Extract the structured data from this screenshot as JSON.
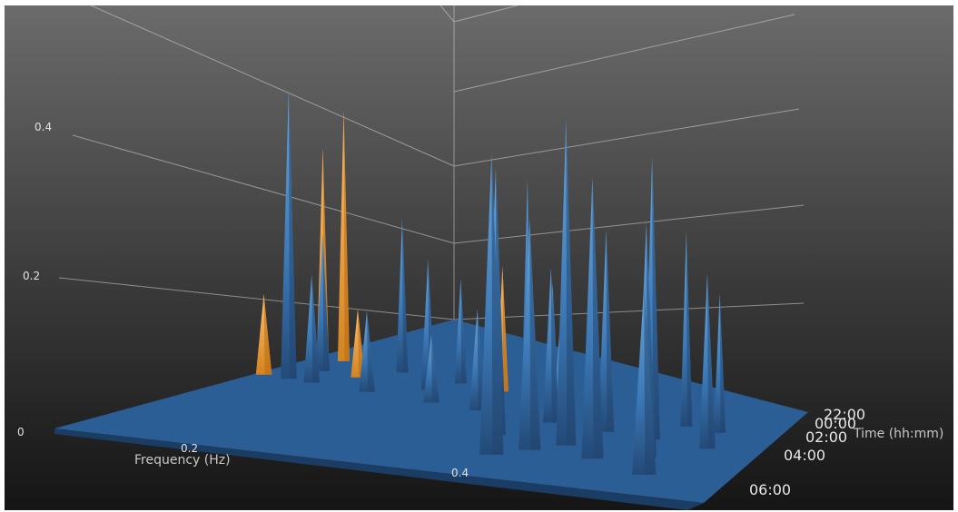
{
  "chart_data": {
    "type": "surface3d",
    "title": "",
    "xlabel": "Frequency (Hz)",
    "ylabel": "Time (hh:mm)",
    "zlabel": "",
    "x_ticks": [
      "0.2",
      "0.4"
    ],
    "z_ticks": [
      "0",
      "0.2",
      "0.4"
    ],
    "y_ticks": [
      "22:00",
      "00:00",
      "02:00",
      "04:00",
      "06:00"
    ],
    "x_range": [
      0.0,
      0.5
    ],
    "z_range": [
      0.0,
      0.55
    ],
    "y_range_hours": [
      21.5,
      6.5
    ],
    "grid": true,
    "colors": {
      "background_top": "#6a6a6a",
      "background_bottom": "#161616",
      "surface": "#3b78b5",
      "surface_dark": "#264f80",
      "surface_light": "#6fa8dc",
      "highlight": "#f0a33a",
      "grid": "#d4d4d4",
      "text": "#e0e0e0"
    },
    "peaks": [
      {
        "freq": 0.005,
        "time": "22:00",
        "z": 0.3,
        "color": "orange"
      },
      {
        "freq": 0.008,
        "time": "00:00",
        "z": 0.12,
        "color": "orange"
      },
      {
        "freq": 0.03,
        "time": "22:00",
        "z": 0.36,
        "color": "orange"
      },
      {
        "freq": 0.035,
        "time": "00:00",
        "z": 0.43,
        "color": "blue"
      },
      {
        "freq": 0.04,
        "time": "23:00",
        "z": 0.2,
        "color": "blue"
      },
      {
        "freq": 0.06,
        "time": "00:00",
        "z": 0.16,
        "color": "blue"
      },
      {
        "freq": 0.08,
        "time": "23:00",
        "z": 0.1,
        "color": "orange"
      },
      {
        "freq": 0.1,
        "time": "22:00",
        "z": 0.22,
        "color": "blue"
      },
      {
        "freq": 0.12,
        "time": "00:00",
        "z": 0.12,
        "color": "blue"
      },
      {
        "freq": 0.16,
        "time": "23:00",
        "z": 0.19,
        "color": "blue"
      },
      {
        "freq": 0.17,
        "time": "22:00",
        "z": 0.15,
        "color": "blue"
      },
      {
        "freq": 0.19,
        "time": "00:00",
        "z": 0.1,
        "color": "blue"
      },
      {
        "freq": 0.22,
        "time": "22:00",
        "z": 0.18,
        "color": "orange"
      },
      {
        "freq": 0.25,
        "time": "22:00",
        "z": 0.31,
        "color": "blue"
      },
      {
        "freq": 0.24,
        "time": "00:00",
        "z": 0.15,
        "color": "blue"
      },
      {
        "freq": 0.28,
        "time": "22:00",
        "z": 0.17,
        "color": "blue"
      },
      {
        "freq": 0.31,
        "time": "23:00",
        "z": 0.12,
        "color": "blue"
      },
      {
        "freq": 0.3,
        "time": "02:00",
        "z": 0.41,
        "color": "blue"
      },
      {
        "freq": 0.32,
        "time": "00:00",
        "z": 0.23,
        "color": "blue"
      },
      {
        "freq": 0.33,
        "time": "04:00",
        "z": 0.48,
        "color": "blue"
      },
      {
        "freq": 0.35,
        "time": "03:00",
        "z": 0.36,
        "color": "blue"
      },
      {
        "freq": 0.37,
        "time": "02:00",
        "z": 0.5,
        "color": "blue"
      },
      {
        "freq": 0.38,
        "time": "00:00",
        "z": 0.3,
        "color": "blue"
      },
      {
        "freq": 0.4,
        "time": "22:00",
        "z": 0.33,
        "color": "blue"
      },
      {
        "freq": 0.41,
        "time": "03:00",
        "z": 0.44,
        "color": "blue"
      },
      {
        "freq": 0.43,
        "time": "00:00",
        "z": 0.42,
        "color": "blue"
      },
      {
        "freq": 0.44,
        "time": "22:00",
        "z": 0.28,
        "color": "blue"
      },
      {
        "freq": 0.45,
        "time": "02:00",
        "z": 0.36,
        "color": "blue"
      },
      {
        "freq": 0.47,
        "time": "04:00",
        "z": 0.3,
        "color": "blue"
      },
      {
        "freq": 0.48,
        "time": "22:00",
        "z": 0.2,
        "color": "blue"
      },
      {
        "freq": 0.49,
        "time": "00:00",
        "z": 0.26,
        "color": "blue"
      }
    ]
  }
}
